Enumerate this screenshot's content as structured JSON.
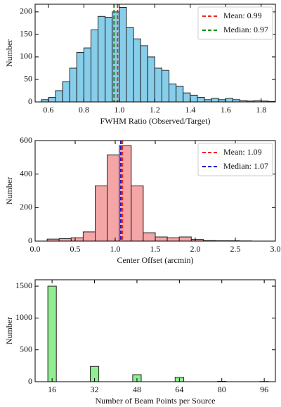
{
  "chart_data": [
    {
      "type": "histogram",
      "x_label": "FWHM Ratio (Observed/Target)",
      "y_label": "Number",
      "color": "#87ceeb",
      "bins": [
        0.56,
        0.6,
        0.64,
        0.68,
        0.72,
        0.76,
        0.8,
        0.84,
        0.88,
        0.92,
        0.96,
        1.0,
        1.04,
        1.08,
        1.12,
        1.16,
        1.2,
        1.24,
        1.28,
        1.32,
        1.36,
        1.4,
        1.44,
        1.48,
        1.52,
        1.56,
        1.6,
        1.64,
        1.68,
        1.72,
        1.76,
        1.8,
        1.84,
        1.88
      ],
      "values": [
        5,
        10,
        25,
        45,
        75,
        110,
        120,
        160,
        190,
        188,
        200,
        210,
        165,
        140,
        125,
        100,
        75,
        70,
        40,
        35,
        20,
        15,
        10,
        5,
        8,
        5,
        8,
        5,
        3,
        2,
        3,
        2,
        1
      ],
      "xlim": [
        0.525,
        1.88
      ],
      "xticks": [
        0.6,
        0.8,
        {
          "value": 1,
          "label": "1.0"
        },
        1.2,
        1.4,
        1.6,
        1.8
      ],
      "ylim": [
        0,
        217
      ],
      "yticks": [
        0,
        50,
        100,
        150,
        200
      ],
      "lines": [
        {
          "name": "Mean: 0.99",
          "value": 0.99,
          "color": "#e8281e"
        },
        {
          "name": "Median: 0.97",
          "value": 0.97,
          "color": "#1a8a1a"
        }
      ]
    },
    {
      "type": "histogram",
      "x_label": "Center Offset (arcmin)",
      "y_label": "Number",
      "color": "#f4a6a6",
      "bins": [
        0.15,
        0.3,
        0.45,
        0.6,
        0.75,
        0.9,
        1.05,
        1.2,
        1.35,
        1.5,
        1.65,
        1.8,
        1.95,
        2.1,
        2.25,
        2.4,
        2.55,
        2.7
      ],
      "values": [
        12,
        15,
        20,
        55,
        330,
        515,
        570,
        330,
        50,
        25,
        20,
        25,
        10,
        3,
        2,
        2,
        1
      ],
      "xlim": [
        0,
        3
      ],
      "xticks": [
        {
          "value": 0,
          "label": "0.0"
        },
        0.5,
        {
          "value": 1,
          "label": "1.0"
        },
        1.5,
        {
          "value": 2,
          "label": "2.0"
        },
        2.5,
        {
          "value": 3,
          "label": "3.0"
        }
      ],
      "ylim": [
        0,
        600
      ],
      "yticks": [
        0,
        200,
        400,
        600
      ],
      "lines": [
        {
          "name": "Mean: 1.09",
          "value": 1.09,
          "color": "#e8281e"
        },
        {
          "name": "Median: 1.07",
          "value": 1.07,
          "color": "#1a1acc"
        }
      ]
    },
    {
      "type": "bar",
      "x_label": "Number of Beam Points per Source",
      "y_label": "Number",
      "color": "#90ee90",
      "x": [
        16,
        32,
        48,
        64,
        80,
        96
      ],
      "values": [
        1500,
        240,
        110,
        70,
        5,
        3
      ],
      "xlim": [
        9.6,
        100.2
      ],
      "xticks": [
        16,
        32,
        48,
        64,
        80,
        96
      ],
      "ylim": [
        0,
        1600
      ],
      "yticks": [
        0,
        500,
        1000,
        1500
      ]
    }
  ]
}
